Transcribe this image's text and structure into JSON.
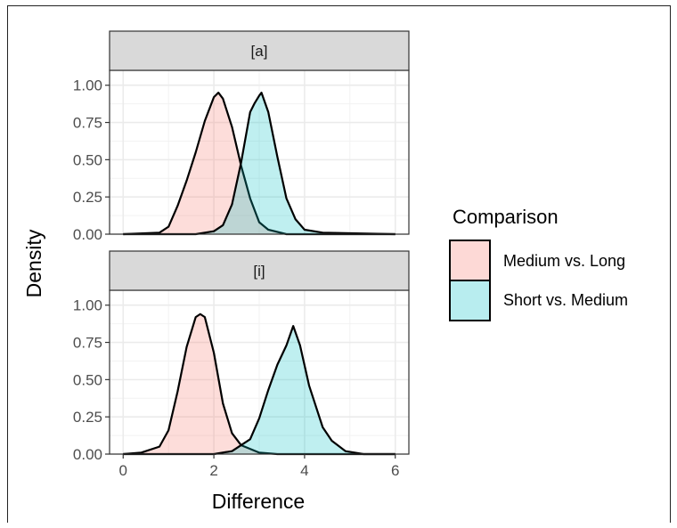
{
  "chart_data": {
    "type": "area",
    "xlabel": "Difference",
    "ylabel": "Density",
    "xlim": [
      -0.3,
      6.3
    ],
    "ylim": [
      0,
      1.1
    ],
    "xticks": [
      "0",
      "2",
      "4",
      "6"
    ],
    "yticks": [
      "0.00",
      "0.25",
      "0.50",
      "0.75",
      "1.00"
    ],
    "grid": true,
    "legend": {
      "title": "Comparison",
      "position": "right",
      "entries": [
        {
          "label": "Medium vs. Long",
          "color": "#F8766D"
        },
        {
          "label": "Short vs. Medium",
          "color": "#00BFC4"
        }
      ]
    },
    "panels": [
      {
        "title": "[a]",
        "series": [
          {
            "name": "Medium vs. Long",
            "color": "#F8766D",
            "points": [
              [
                0.0,
                0.0
              ],
              [
                0.8,
                0.01
              ],
              [
                1.0,
                0.05
              ],
              [
                1.2,
                0.19
              ],
              [
                1.4,
                0.36
              ],
              [
                1.6,
                0.55
              ],
              [
                1.8,
                0.76
              ],
              [
                2.0,
                0.92
              ],
              [
                2.1,
                0.95
              ],
              [
                2.2,
                0.91
              ],
              [
                2.4,
                0.72
              ],
              [
                2.6,
                0.46
              ],
              [
                2.8,
                0.24
              ],
              [
                3.0,
                0.08
              ],
              [
                3.2,
                0.03
              ],
              [
                3.6,
                0.0
              ],
              [
                6.0,
                0.0
              ]
            ]
          },
          {
            "name": "Short vs. Medium",
            "color": "#00BFC4",
            "points": [
              [
                0.0,
                0.0
              ],
              [
                1.6,
                0.0
              ],
              [
                2.0,
                0.02
              ],
              [
                2.2,
                0.06
              ],
              [
                2.4,
                0.2
              ],
              [
                2.6,
                0.48
              ],
              [
                2.8,
                0.82
              ],
              [
                2.9,
                0.88
              ],
              [
                3.0,
                0.93
              ],
              [
                3.05,
                0.95
              ],
              [
                3.2,
                0.82
              ],
              [
                3.4,
                0.52
              ],
              [
                3.6,
                0.24
              ],
              [
                3.8,
                0.1
              ],
              [
                4.0,
                0.03
              ],
              [
                4.4,
                0.01
              ],
              [
                6.0,
                0.0
              ]
            ]
          }
        ]
      },
      {
        "title": "[i]",
        "series": [
          {
            "name": "Medium vs. Long",
            "color": "#F8766D",
            "points": [
              [
                0.0,
                0.0
              ],
              [
                0.4,
                0.01
              ],
              [
                0.8,
                0.05
              ],
              [
                1.0,
                0.16
              ],
              [
                1.2,
                0.42
              ],
              [
                1.4,
                0.72
              ],
              [
                1.6,
                0.92
              ],
              [
                1.7,
                0.94
              ],
              [
                1.8,
                0.92
              ],
              [
                2.0,
                0.68
              ],
              [
                2.2,
                0.34
              ],
              [
                2.4,
                0.14
              ],
              [
                2.6,
                0.06
              ],
              [
                3.0,
                0.01
              ],
              [
                3.4,
                0.0
              ],
              [
                6.0,
                0.0
              ]
            ]
          },
          {
            "name": "Short vs. Medium",
            "color": "#00BFC4",
            "points": [
              [
                0.0,
                0.0
              ],
              [
                2.0,
                0.0
              ],
              [
                2.4,
                0.02
              ],
              [
                2.8,
                0.1
              ],
              [
                3.0,
                0.24
              ],
              [
                3.2,
                0.43
              ],
              [
                3.4,
                0.6
              ],
              [
                3.6,
                0.73
              ],
              [
                3.75,
                0.86
              ],
              [
                3.9,
                0.73
              ],
              [
                4.1,
                0.46
              ],
              [
                4.4,
                0.18
              ],
              [
                4.6,
                0.09
              ],
              [
                4.9,
                0.02
              ],
              [
                5.3,
                0.0
              ],
              [
                6.0,
                0.0
              ]
            ]
          }
        ]
      }
    ]
  }
}
